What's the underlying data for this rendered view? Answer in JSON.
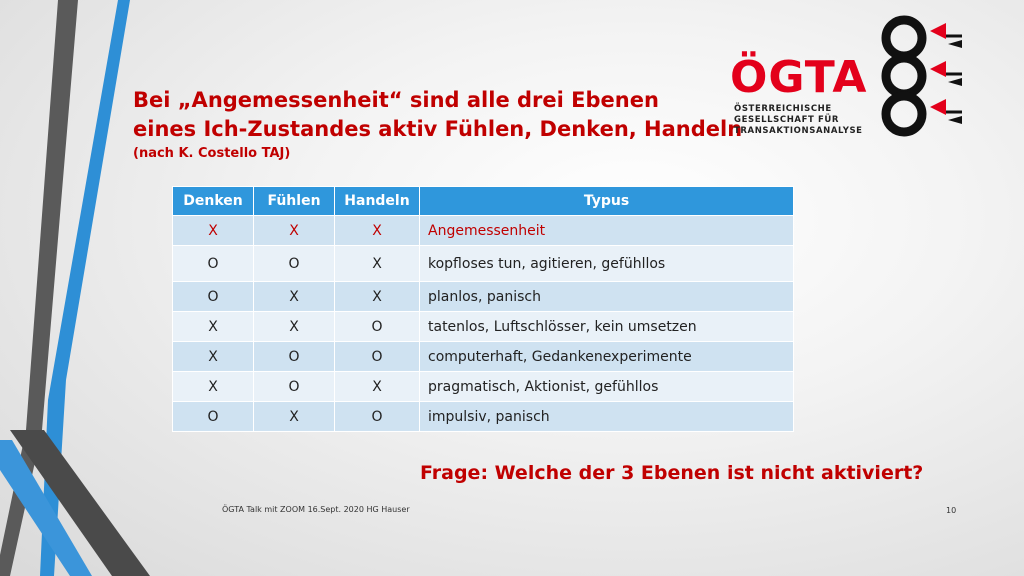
{
  "title": {
    "line1": "Bei „Angemessenheit“ sind alle drei Ebenen",
    "line2": "eines Ich-Zustandes aktiv Fühlen, Denken, Handeln",
    "subtitle": "(nach K. Costello TAJ)"
  },
  "logo": {
    "name": "ÖGTA",
    "sub1": "ÖSTERREICHISCHE",
    "sub2": "GESELLSCHAFT FÜR",
    "sub3": "TRANSAKTIONSANALYSE",
    "colors": {
      "red": "#e3001b",
      "black": "#111111"
    }
  },
  "table": {
    "headers": [
      "Denken",
      "Fühlen",
      "Handeln",
      "Typus"
    ],
    "rows": [
      [
        "X",
        "X",
        "X",
        "Angemessenheit"
      ],
      [
        "O",
        "O",
        "X",
        "kopfloses tun, agitieren, gefühllos"
      ],
      [
        "O",
        "X",
        "X",
        "planlos, panisch"
      ],
      [
        "X",
        "X",
        "O",
        "tatenlos, Luftschlösser, kein umsetzen"
      ],
      [
        "X",
        "O",
        "O",
        "computerhaft, Gedankenexperimente"
      ],
      [
        "X",
        "O",
        "X",
        "pragmatisch, Aktionist, gefühllos"
      ],
      [
        "O",
        "X",
        "O",
        "impulsiv, panisch"
      ]
    ]
  },
  "question": "Frage: Welche der 3 Ebenen ist nicht aktiviert?",
  "footer": "ÖGTA Talk mit ZOOM 16.Sept. 2020 HG Hauser",
  "page_number": "10",
  "colors": {
    "accent_red": "#c00000",
    "header_blue": "#2f97dc",
    "row_light": "#e9f1f8",
    "row_dark": "#cfe2f1"
  }
}
